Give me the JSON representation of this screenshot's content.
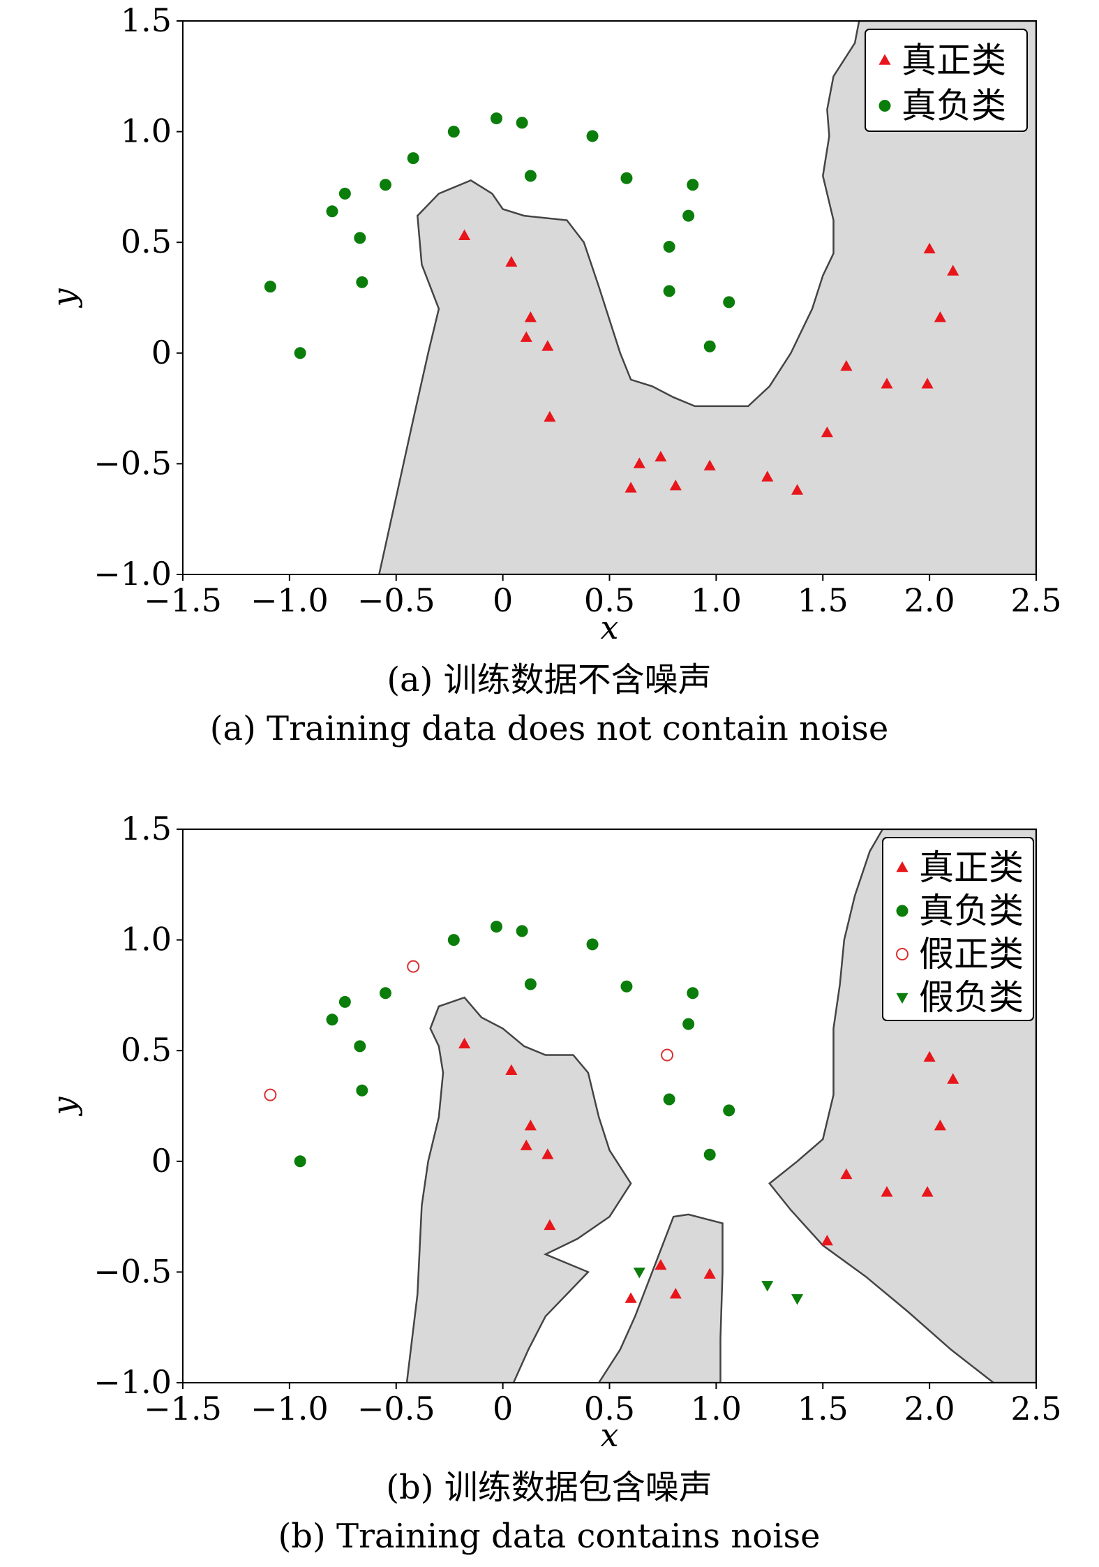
{
  "chart_data": [
    {
      "type": "scatter",
      "subtitle_cn": "(a) 训练数据不含噪声",
      "subtitle_en": "(a) Training data does not contain noise",
      "xlabel": "x",
      "ylabel": "y",
      "xlim": [
        -1.5,
        2.5
      ],
      "ylim": [
        -1.0,
        1.5
      ],
      "xticks": [
        -1.5,
        -1.0,
        -0.5,
        0,
        0.5,
        1.0,
        1.5,
        2.0,
        2.5
      ],
      "xtick_labels": [
        "−1.5",
        "−1.0",
        "−0.5",
        "0",
        "0.5",
        "1.0",
        "1.5",
        "2.0",
        "2.5"
      ],
      "yticks": [
        -1.0,
        -0.5,
        0,
        0.5,
        1.0,
        1.5
      ],
      "ytick_labels": [
        "−1.0",
        "−0.5",
        "0",
        "0.5",
        "1.0",
        "1.5"
      ],
      "legend_position": "top-right",
      "decision_region": {
        "color": "#d9d9d9",
        "edge_color": "#444444",
        "polygons": [
          [
            [
              -0.58,
              -1.0
            ],
            [
              -0.5,
              -0.65
            ],
            [
              -0.42,
              -0.3
            ],
            [
              -0.35,
              0.0
            ],
            [
              -0.3,
              0.2
            ],
            [
              -0.38,
              0.4
            ],
            [
              -0.4,
              0.62
            ],
            [
              -0.3,
              0.72
            ],
            [
              -0.15,
              0.78
            ],
            [
              -0.05,
              0.72
            ],
            [
              0.0,
              0.65
            ],
            [
              0.1,
              0.62
            ],
            [
              0.3,
              0.6
            ],
            [
              0.38,
              0.5
            ],
            [
              0.45,
              0.3
            ],
            [
              0.5,
              0.15
            ],
            [
              0.55,
              0.0
            ],
            [
              0.6,
              -0.12
            ],
            [
              0.7,
              -0.15
            ],
            [
              0.8,
              -0.2
            ],
            [
              0.9,
              -0.24
            ],
            [
              1.15,
              -0.24
            ],
            [
              1.25,
              -0.15
            ],
            [
              1.35,
              0.0
            ],
            [
              1.45,
              0.2
            ],
            [
              1.5,
              0.35
            ],
            [
              1.55,
              0.45
            ],
            [
              1.55,
              0.6
            ],
            [
              1.5,
              0.8
            ],
            [
              1.53,
              0.98
            ],
            [
              1.52,
              1.1
            ],
            [
              1.55,
              1.25
            ],
            [
              1.65,
              1.4
            ],
            [
              1.67,
              1.5
            ],
            [
              2.5,
              1.5
            ],
            [
              2.5,
              -1.0
            ]
          ]
        ]
      },
      "series": [
        {
          "name": "真正类",
          "marker": "triangle-up",
          "color": "#e8161b",
          "points": [
            [
              -0.18,
              0.53
            ],
            [
              0.04,
              0.41
            ],
            [
              0.13,
              0.16
            ],
            [
              0.11,
              0.07
            ],
            [
              0.21,
              0.03
            ],
            [
              0.22,
              -0.29
            ],
            [
              0.6,
              -0.61
            ],
            [
              0.64,
              -0.5
            ],
            [
              0.74,
              -0.47
            ],
            [
              0.81,
              -0.6
            ],
            [
              0.97,
              -0.51
            ],
            [
              1.24,
              -0.56
            ],
            [
              1.38,
              -0.62
            ],
            [
              1.52,
              -0.36
            ],
            [
              1.61,
              -0.06
            ],
            [
              1.8,
              -0.14
            ],
            [
              1.99,
              -0.14
            ],
            [
              2.05,
              0.16
            ],
            [
              2.11,
              0.37
            ],
            [
              2.0,
              0.47
            ]
          ]
        },
        {
          "name": "真负类",
          "marker": "circle",
          "color": "#0a7d0a",
          "points": [
            [
              -1.09,
              0.3
            ],
            [
              -0.95,
              0.0
            ],
            [
              -0.8,
              0.64
            ],
            [
              -0.74,
              0.72
            ],
            [
              -0.67,
              0.52
            ],
            [
              -0.66,
              0.32
            ],
            [
              -0.55,
              0.76
            ],
            [
              -0.42,
              0.88
            ],
            [
              -0.23,
              1.0
            ],
            [
              -0.03,
              1.06
            ],
            [
              0.09,
              1.04
            ],
            [
              0.13,
              0.8
            ],
            [
              0.42,
              0.98
            ],
            [
              0.58,
              0.79
            ],
            [
              0.78,
              0.48
            ],
            [
              0.78,
              0.28
            ],
            [
              0.87,
              0.62
            ],
            [
              0.89,
              0.76
            ],
            [
              0.97,
              0.03
            ],
            [
              1.06,
              0.23
            ]
          ]
        }
      ]
    },
    {
      "type": "scatter",
      "subtitle_cn": "(b) 训练数据包含噪声",
      "subtitle_en": "(b) Training data contains noise",
      "xlabel": "x",
      "ylabel": "y",
      "xlim": [
        -1.5,
        2.5
      ],
      "ylim": [
        -1.0,
        1.5
      ],
      "xticks": [
        -1.5,
        -1.0,
        -0.5,
        0,
        0.5,
        1.0,
        1.5,
        2.0,
        2.5
      ],
      "xtick_labels": [
        "−1.5",
        "−1.0",
        "−0.5",
        "0",
        "0.5",
        "1.0",
        "1.5",
        "2.0",
        "2.5"
      ],
      "yticks": [
        -1.0,
        -0.5,
        0,
        0.5,
        1.0,
        1.5
      ],
      "ytick_labels": [
        "−1.0",
        "−0.5",
        "0",
        "0.5",
        "1.0",
        "1.5"
      ],
      "legend_position": "top-right",
      "decision_region": {
        "color": "#d9d9d9",
        "edge_color": "#444444",
        "polygons": [
          [
            [
              -0.45,
              -1.0
            ],
            [
              -0.4,
              -0.6
            ],
            [
              -0.38,
              -0.2
            ],
            [
              -0.35,
              0.0
            ],
            [
              -0.3,
              0.2
            ],
            [
              -0.28,
              0.4
            ],
            [
              -0.3,
              0.52
            ],
            [
              -0.34,
              0.6
            ],
            [
              -0.3,
              0.7
            ],
            [
              -0.18,
              0.74
            ],
            [
              -0.1,
              0.65
            ],
            [
              0.0,
              0.6
            ],
            [
              0.1,
              0.52
            ],
            [
              0.2,
              0.48
            ],
            [
              0.33,
              0.48
            ],
            [
              0.4,
              0.4
            ],
            [
              0.45,
              0.2
            ],
            [
              0.5,
              0.05
            ],
            [
              0.6,
              -0.1
            ],
            [
              0.5,
              -0.25
            ],
            [
              0.35,
              -0.35
            ],
            [
              0.2,
              -0.42
            ],
            [
              0.4,
              -0.5
            ],
            [
              0.3,
              -0.6
            ],
            [
              0.2,
              -0.7
            ],
            [
              0.12,
              -0.85
            ],
            [
              0.05,
              -1.0
            ]
          ],
          [
            [
              0.45,
              -1.0
            ],
            [
              0.55,
              -0.85
            ],
            [
              0.62,
              -0.7
            ],
            [
              0.68,
              -0.55
            ],
            [
              0.72,
              -0.45
            ],
            [
              0.8,
              -0.25
            ],
            [
              0.87,
              -0.24
            ],
            [
              0.95,
              -0.26
            ],
            [
              1.03,
              -0.28
            ],
            [
              1.03,
              -0.5
            ],
            [
              1.02,
              -0.8
            ],
            [
              1.02,
              -1.0
            ]
          ],
          [
            [
              1.25,
              -0.1
            ],
            [
              1.38,
              0.0
            ],
            [
              1.5,
              0.1
            ],
            [
              1.55,
              0.3
            ],
            [
              1.55,
              0.6
            ],
            [
              1.58,
              0.8
            ],
            [
              1.6,
              1.0
            ],
            [
              1.65,
              1.2
            ],
            [
              1.72,
              1.4
            ],
            [
              1.78,
              1.5
            ],
            [
              2.5,
              1.5
            ],
            [
              2.5,
              -1.0
            ],
            [
              2.3,
              -1.0
            ],
            [
              2.1,
              -0.85
            ],
            [
              1.9,
              -0.68
            ],
            [
              1.7,
              -0.52
            ],
            [
              1.5,
              -0.38
            ],
            [
              1.35,
              -0.22
            ]
          ]
        ]
      },
      "series": [
        {
          "name": "真正类",
          "marker": "triangle-up",
          "color": "#e8161b",
          "points": [
            [
              -0.18,
              0.53
            ],
            [
              0.04,
              0.41
            ],
            [
              0.13,
              0.16
            ],
            [
              0.11,
              0.07
            ],
            [
              0.21,
              0.03
            ],
            [
              0.22,
              -0.29
            ],
            [
              0.6,
              -0.62
            ],
            [
              0.74,
              -0.47
            ],
            [
              0.81,
              -0.6
            ],
            [
              0.97,
              -0.51
            ],
            [
              1.52,
              -0.36
            ],
            [
              1.61,
              -0.06
            ],
            [
              1.8,
              -0.14
            ],
            [
              1.99,
              -0.14
            ],
            [
              2.05,
              0.16
            ],
            [
              2.11,
              0.37
            ],
            [
              2.0,
              0.47
            ]
          ]
        },
        {
          "name": "真负类",
          "marker": "circle",
          "color": "#0a7d0a",
          "points": [
            [
              -0.95,
              0.0
            ],
            [
              -0.8,
              0.64
            ],
            [
              -0.74,
              0.72
            ],
            [
              -0.67,
              0.52
            ],
            [
              -0.66,
              0.32
            ],
            [
              -0.55,
              0.76
            ],
            [
              -0.23,
              1.0
            ],
            [
              -0.03,
              1.06
            ],
            [
              0.09,
              1.04
            ],
            [
              0.13,
              0.8
            ],
            [
              0.42,
              0.98
            ],
            [
              0.58,
              0.79
            ],
            [
              0.78,
              0.28
            ],
            [
              0.87,
              0.62
            ],
            [
              0.89,
              0.76
            ],
            [
              0.97,
              0.03
            ],
            [
              1.06,
              0.23
            ]
          ]
        },
        {
          "name": "假正类",
          "marker": "circle-open",
          "color": "#d93030",
          "points": [
            [
              -1.09,
              0.3
            ],
            [
              -0.42,
              0.88
            ],
            [
              0.77,
              0.48
            ]
          ]
        },
        {
          "name": "假负类",
          "marker": "triangle-down",
          "color": "#0a7d0a",
          "points": [
            [
              0.64,
              -0.5
            ],
            [
              1.24,
              -0.56
            ],
            [
              1.38,
              -0.62
            ]
          ]
        }
      ]
    }
  ]
}
